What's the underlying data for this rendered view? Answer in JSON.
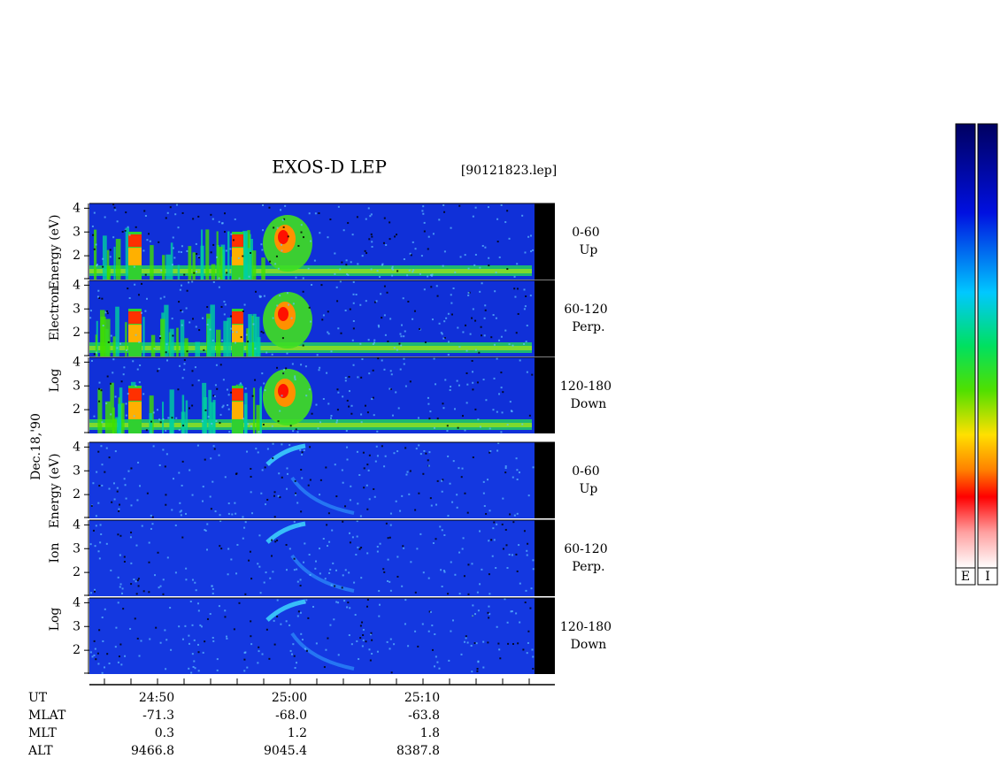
{
  "header": {
    "title": "EXOS-D LEP",
    "file": "[90121823.lep]",
    "date": "Dec.18,'90"
  },
  "ylim": [
    1,
    4.2
  ],
  "yticks": [
    2,
    3,
    4
  ],
  "groups": [
    {
      "label": [
        "Log",
        "Electron",
        "Energy (eV)"
      ],
      "panels": [
        {
          "angle": "0-60",
          "dir": "Up"
        },
        {
          "angle": "60-120",
          "dir": "Perp."
        },
        {
          "angle": "120-180",
          "dir": "Down"
        }
      ]
    },
    {
      "label": [
        "Log",
        "Ion",
        "Energy (eV)"
      ],
      "panels": [
        {
          "angle": "0-60",
          "dir": "Up"
        },
        {
          "angle": "60-120",
          "dir": "Perp."
        },
        {
          "angle": "120-180",
          "dir": "Down"
        }
      ]
    }
  ],
  "orbit": {
    "rows": [
      {
        "name": "UT",
        "values": [
          "24:50",
          "25:00",
          "25:10"
        ]
      },
      {
        "name": "MLAT",
        "values": [
          "-71.3",
          "-68.0",
          "-63.8"
        ]
      },
      {
        "name": "MLT",
        "values": [
          "0.3",
          "1.2",
          "1.8"
        ]
      },
      {
        "name": "ALT",
        "values": [
          "9466.8",
          "9045.4",
          "8387.8"
        ]
      }
    ]
  },
  "colorbars": [
    "E",
    "I"
  ]
}
